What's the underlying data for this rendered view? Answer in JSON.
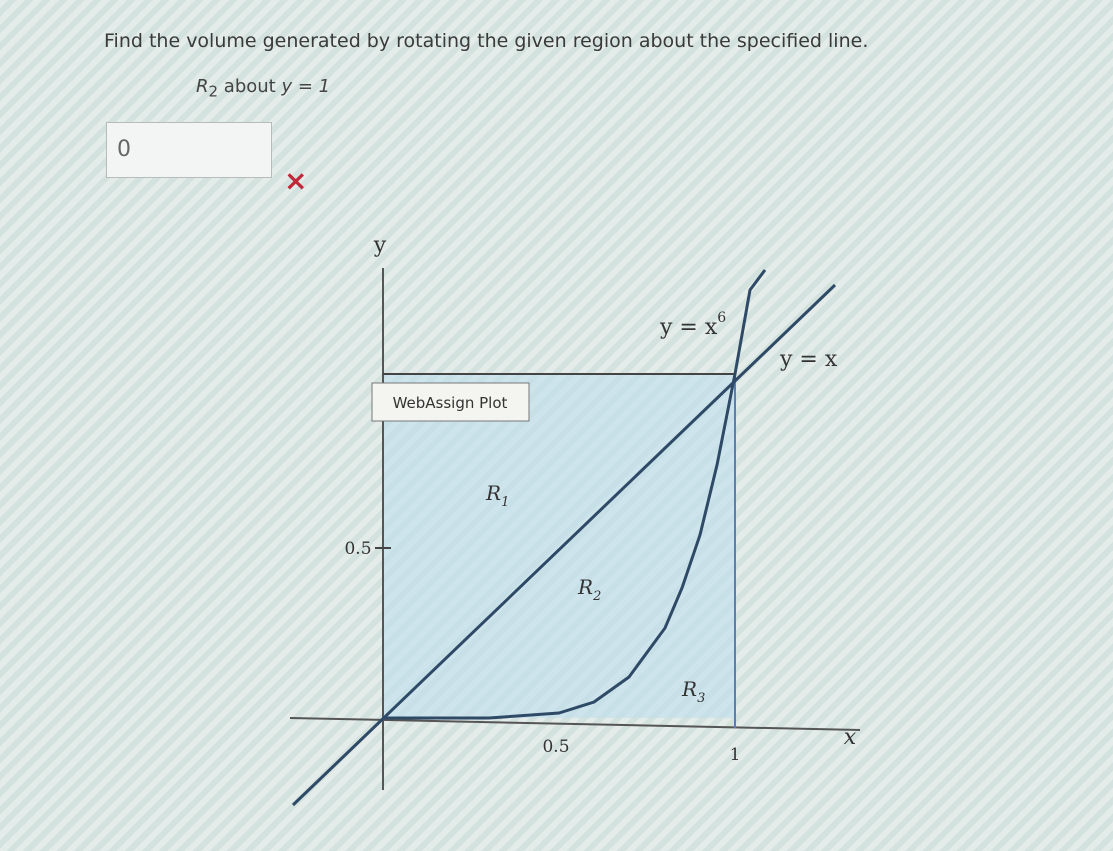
{
  "question": {
    "prompt": "Find the volume generated by rotating the given region about the specified line.",
    "region": {
      "base": "R",
      "sub": "2"
    },
    "about": "about",
    "line": "y = 1"
  },
  "answer": {
    "input": "0",
    "status": "×"
  },
  "plot": {
    "caption": "WebAssign Plot",
    "y_axis": "y",
    "x_axis": "x",
    "y_tick": "0.5",
    "x_ticks": [
      "0.5",
      "1"
    ],
    "curve_label": {
      "base": "y = x",
      "exp": "6"
    },
    "line_label": "y = x",
    "regions": [
      {
        "base": "R",
        "sub": "1"
      },
      {
        "base": "R",
        "sub": "2"
      },
      {
        "base": "R",
        "sub": "3"
      }
    ]
  }
}
